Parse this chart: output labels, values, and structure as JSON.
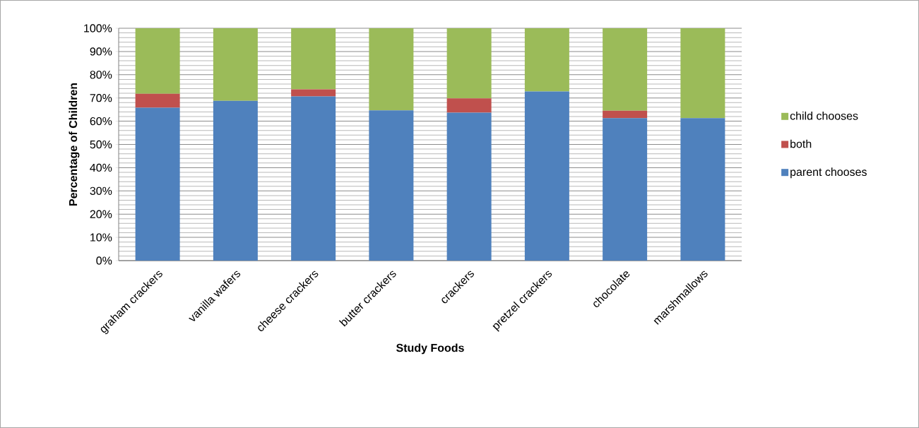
{
  "chart_data": {
    "type": "bar",
    "stacked": true,
    "xlabel": "Study Foods",
    "ylabel": "Percentage of Children",
    "categories": [
      "graham crackers",
      "vanilla wafers",
      "cheese crackers",
      "butter crackers",
      "crackers",
      "pretzel crackers",
      "chocolate",
      "marshmallows"
    ],
    "series": [
      {
        "name": "parent chooses",
        "color": "#4f81bd",
        "values": [
          65.8,
          68.8,
          70.7,
          64.7,
          63.7,
          72.8,
          61.3,
          61.3
        ]
      },
      {
        "name": "both",
        "color": "#c0504d",
        "values": [
          6.0,
          0,
          3.0,
          0,
          6.1,
          0,
          3.2,
          0
        ]
      },
      {
        "name": "child chooses",
        "color": "#9bbb59",
        "values": [
          28.2,
          31.2,
          26.3,
          35.3,
          30.2,
          27.2,
          35.5,
          38.7
        ]
      }
    ],
    "ylim": [
      0,
      100
    ],
    "yticks": [
      {
        "value": 0,
        "label": "0%"
      },
      {
        "value": 10,
        "label": "10%"
      },
      {
        "value": 20,
        "label": "20%"
      },
      {
        "value": 30,
        "label": "30%"
      },
      {
        "value": 40,
        "label": "40%"
      },
      {
        "value": 50,
        "label": "50%"
      },
      {
        "value": 60,
        "label": "60%"
      },
      {
        "value": 70,
        "label": "70%"
      },
      {
        "value": 80,
        "label": "80%"
      },
      {
        "value": 90,
        "label": "90%"
      },
      {
        "value": 100,
        "label": "100%"
      }
    ],
    "grid": "y",
    "legend": "right"
  }
}
